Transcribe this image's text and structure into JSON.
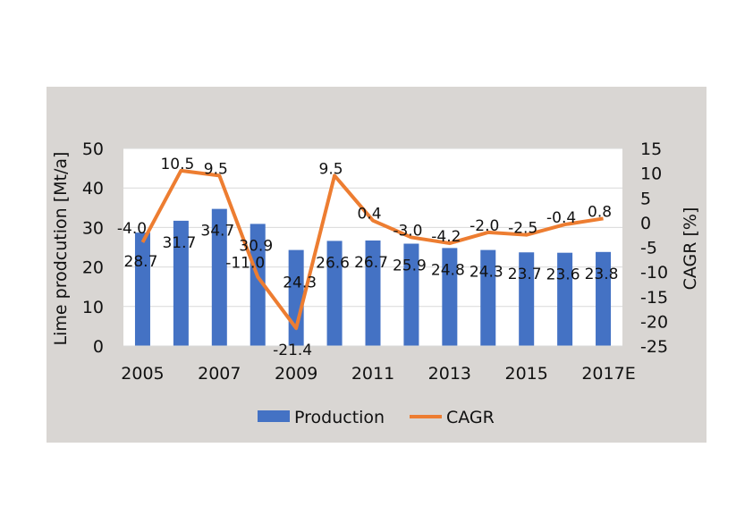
{
  "chart_data": {
    "type": "bar+line",
    "categories": [
      "2005",
      "2006",
      "2007",
      "2008",
      "2009",
      "2010",
      "2011",
      "2012",
      "2013",
      "2014",
      "2015",
      "2016",
      "2017E"
    ],
    "x_tick_labels": [
      "2005",
      "2007",
      "2009",
      "2011",
      "2013",
      "2015",
      "2017E"
    ],
    "series": [
      {
        "name": "Production",
        "type": "bar",
        "axis": "left",
        "color": "#4472c4",
        "values": [
          28.7,
          31.7,
          34.7,
          30.9,
          24.3,
          26.6,
          26.7,
          25.9,
          24.8,
          24.3,
          23.7,
          23.6,
          23.8
        ]
      },
      {
        "name": "CAGR",
        "type": "line",
        "axis": "right",
        "color": "#ed7d31",
        "values": [
          -4.0,
          10.5,
          9.5,
          -11.0,
          -21.4,
          9.5,
          0.4,
          -3.0,
          -4.2,
          -2.0,
          -2.5,
          -0.4,
          0.8
        ]
      }
    ],
    "ylabel": "Lime prodcution [Mt/a]",
    "y2label": "CAGR [%]",
    "ylim": [
      0,
      50
    ],
    "y_ticks": [
      0,
      10,
      20,
      30,
      40,
      50
    ],
    "y2lim": [
      -25,
      15
    ],
    "y2_ticks": [
      -25,
      -20,
      -15,
      -10,
      -5,
      0,
      5,
      10,
      15
    ],
    "grid": true,
    "legend_position": "bottom",
    "background_color": "#d9d6d3"
  }
}
